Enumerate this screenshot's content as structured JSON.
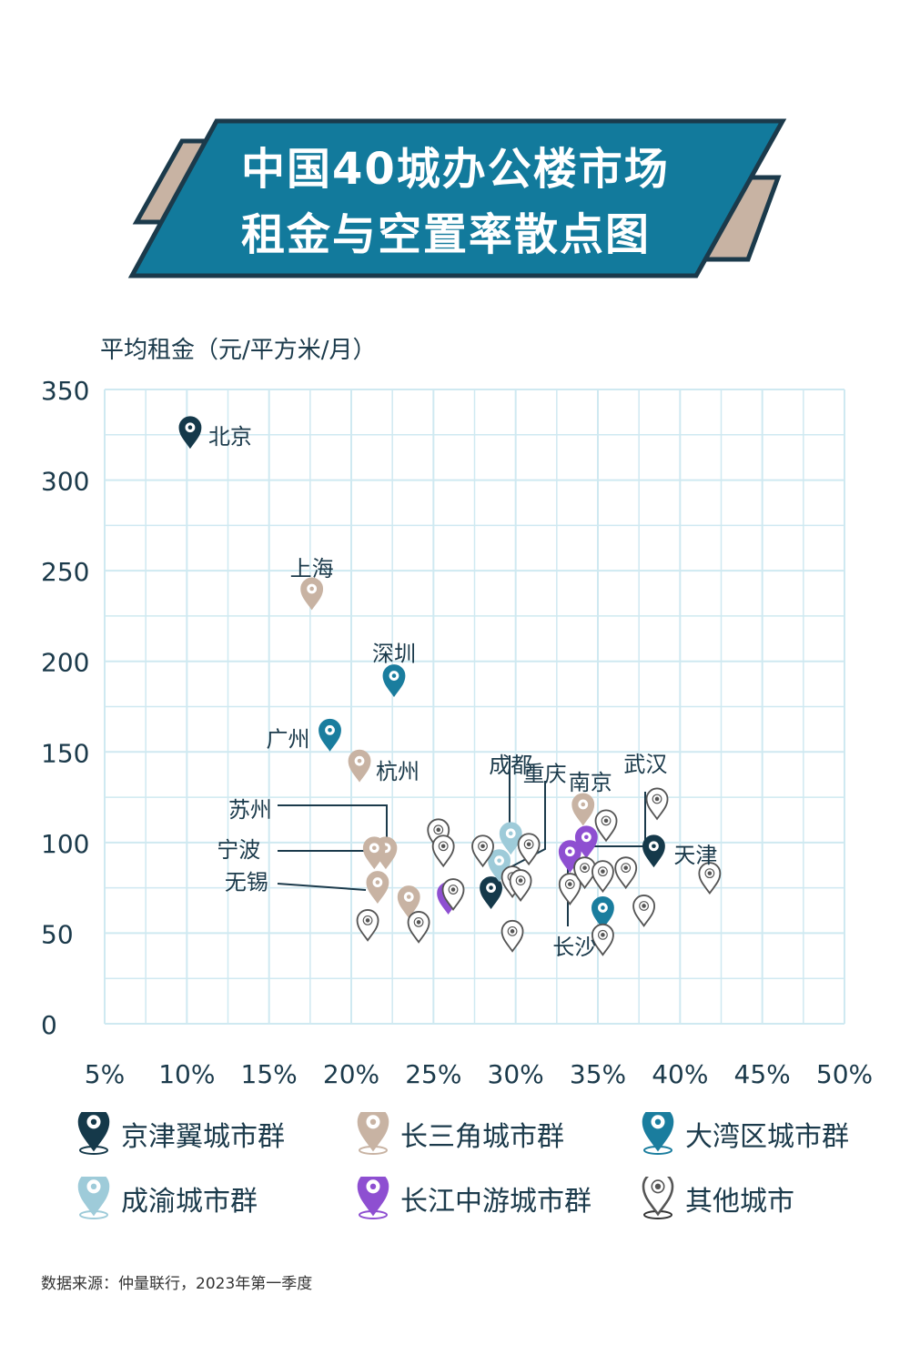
{
  "title": {
    "line1": "中国40城办公楼市场",
    "line2": "租金与空置率散点图"
  },
  "colors": {
    "banner": "#127a9c",
    "banner_border": "#1b3a4b",
    "accent_tan": "#c8b3a3",
    "grid": "#cfe9f1",
    "axis_text": "#1b3a4b",
    "jjj": "#15394a",
    "csj": "#c8b3a3",
    "dwq": "#1a7d9e",
    "cy": "#9ecbd9",
    "cjzy": "#8e4fd1",
    "other": "#ffffff"
  },
  "chart_data": {
    "type": "scatter",
    "ylabel": "平均租金（元/平方米/月）",
    "xlim": [
      0.05,
      0.5
    ],
    "ylim": [
      0,
      350
    ],
    "x_ticks": [
      "5%",
      "10%",
      "15%",
      "20%",
      "25%",
      "30%",
      "35%",
      "40%",
      "45%",
      "50%"
    ],
    "y_ticks": [
      "350",
      "300",
      "250",
      "200",
      "150",
      "100",
      "50",
      "0"
    ],
    "grid": true,
    "series": [
      {
        "name": "京津翼城市群",
        "color_key": "jjj",
        "points": [
          {
            "x": 0.102,
            "y": 325,
            "label": "北京"
          },
          {
            "x": 0.384,
            "y": 94,
            "label": "天津"
          },
          {
            "x": 0.285,
            "y": 71
          }
        ]
      },
      {
        "name": "长三角城市群",
        "color_key": "csj",
        "points": [
          {
            "x": 0.176,
            "y": 236,
            "label": "上海"
          },
          {
            "x": 0.205,
            "y": 141,
            "label": "杭州"
          },
          {
            "x": 0.221,
            "y": 93,
            "label": "苏州"
          },
          {
            "x": 0.214,
            "y": 93,
            "label": "宁波"
          },
          {
            "x": 0.216,
            "y": 74,
            "label": "无锡"
          },
          {
            "x": 0.341,
            "y": 117,
            "label": "南京"
          },
          {
            "x": 0.235,
            "y": 66
          }
        ]
      },
      {
        "name": "大湾区城市群",
        "color_key": "dwq",
        "points": [
          {
            "x": 0.226,
            "y": 188,
            "label": "深圳"
          },
          {
            "x": 0.187,
            "y": 158,
            "label": "广州"
          },
          {
            "x": 0.353,
            "y": 60
          }
        ]
      },
      {
        "name": "成渝城市群",
        "color_key": "cy",
        "points": [
          {
            "x": 0.297,
            "y": 101,
            "label": "成都"
          },
          {
            "x": 0.29,
            "y": 86,
            "label": "重庆"
          }
        ]
      },
      {
        "name": "长江中游城市群",
        "color_key": "cjzy",
        "points": [
          {
            "x": 0.343,
            "y": 99,
            "label": "武汉"
          },
          {
            "x": 0.333,
            "y": 91,
            "label": "长沙"
          },
          {
            "x": 0.259,
            "y": 68
          }
        ]
      },
      {
        "name": "其他城市",
        "color_key": "other",
        "points": [
          {
            "x": 0.253,
            "y": 103
          },
          {
            "x": 0.256,
            "y": 94
          },
          {
            "x": 0.28,
            "y": 94
          },
          {
            "x": 0.308,
            "y": 95
          },
          {
            "x": 0.262,
            "y": 70
          },
          {
            "x": 0.298,
            "y": 77
          },
          {
            "x": 0.303,
            "y": 75
          },
          {
            "x": 0.333,
            "y": 73
          },
          {
            "x": 0.342,
            "y": 82
          },
          {
            "x": 0.353,
            "y": 80
          },
          {
            "x": 0.367,
            "y": 82
          },
          {
            "x": 0.355,
            "y": 108
          },
          {
            "x": 0.386,
            "y": 120
          },
          {
            "x": 0.418,
            "y": 79
          },
          {
            "x": 0.378,
            "y": 61
          },
          {
            "x": 0.21,
            "y": 53
          },
          {
            "x": 0.241,
            "y": 52
          },
          {
            "x": 0.298,
            "y": 47
          },
          {
            "x": 0.353,
            "y": 45
          }
        ]
      }
    ]
  },
  "legend": [
    {
      "label": "京津翼城市群",
      "color_key": "jjj"
    },
    {
      "label": "长三角城市群",
      "color_key": "csj"
    },
    {
      "label": "大湾区城市群",
      "color_key": "dwq"
    },
    {
      "label": "成渝城市群",
      "color_key": "cy"
    },
    {
      "label": "长江中游城市群",
      "color_key": "cjzy"
    },
    {
      "label": "其他城市",
      "color_key": "other"
    }
  ],
  "source": "数据来源：仲量联行，2023年第一季度"
}
